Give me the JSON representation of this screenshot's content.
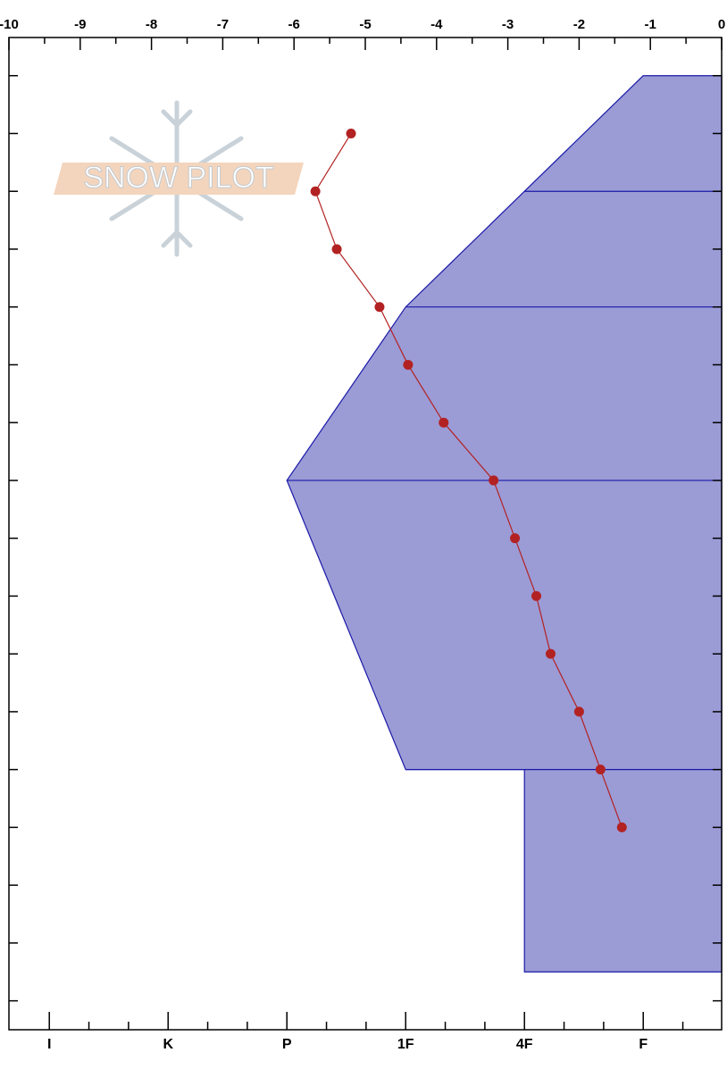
{
  "chart_data": {
    "type": "snowpit",
    "logo": "SNOW PILOT",
    "temperature": {
      "name": "temperature",
      "color": "#b22222",
      "depths": [
        10,
        20,
        30,
        40,
        50,
        60,
        70,
        80,
        90,
        100,
        110,
        120,
        130
      ],
      "values": [
        -5.2,
        -5.7,
        -5.4,
        -4.8,
        -4.4,
        -3.9,
        -3.2,
        -2.9,
        -2.6,
        -2.4,
        -2.0,
        -1.7,
        -1.4
      ]
    },
    "hardness": {
      "name": "hardness",
      "color": "#9b9bd6",
      "edge_color": "#1a1aa8",
      "depths": [
        0,
        20,
        40,
        70,
        120,
        120,
        155
      ],
      "values": [
        5,
        4,
        3,
        2,
        3,
        4,
        4
      ]
    },
    "layer_boundaries": [
      20,
      40,
      70,
      120
    ],
    "xlim": [
      -10,
      0
    ],
    "xticks": [
      -10,
      -9,
      -8,
      -7,
      -6,
      -5,
      -4,
      -3,
      -2,
      -1,
      0
    ],
    "hardness_lim": [
      -0.34,
      5.66
    ],
    "hardness_ticks": [
      {
        "value": 0,
        "label": "I"
      },
      {
        "value": 1,
        "label": "K"
      },
      {
        "value": 2,
        "label": "P"
      },
      {
        "value": 3,
        "label": "1F"
      },
      {
        "value": 4,
        "label": "4F"
      },
      {
        "value": 5,
        "label": "F"
      }
    ],
    "ylim": [
      -6.6,
      165
    ],
    "yticks": [
      0,
      10,
      20,
      30,
      40,
      50,
      60,
      70,
      80,
      90,
      100,
      110,
      120,
      130,
      140,
      150,
      160
    ]
  }
}
